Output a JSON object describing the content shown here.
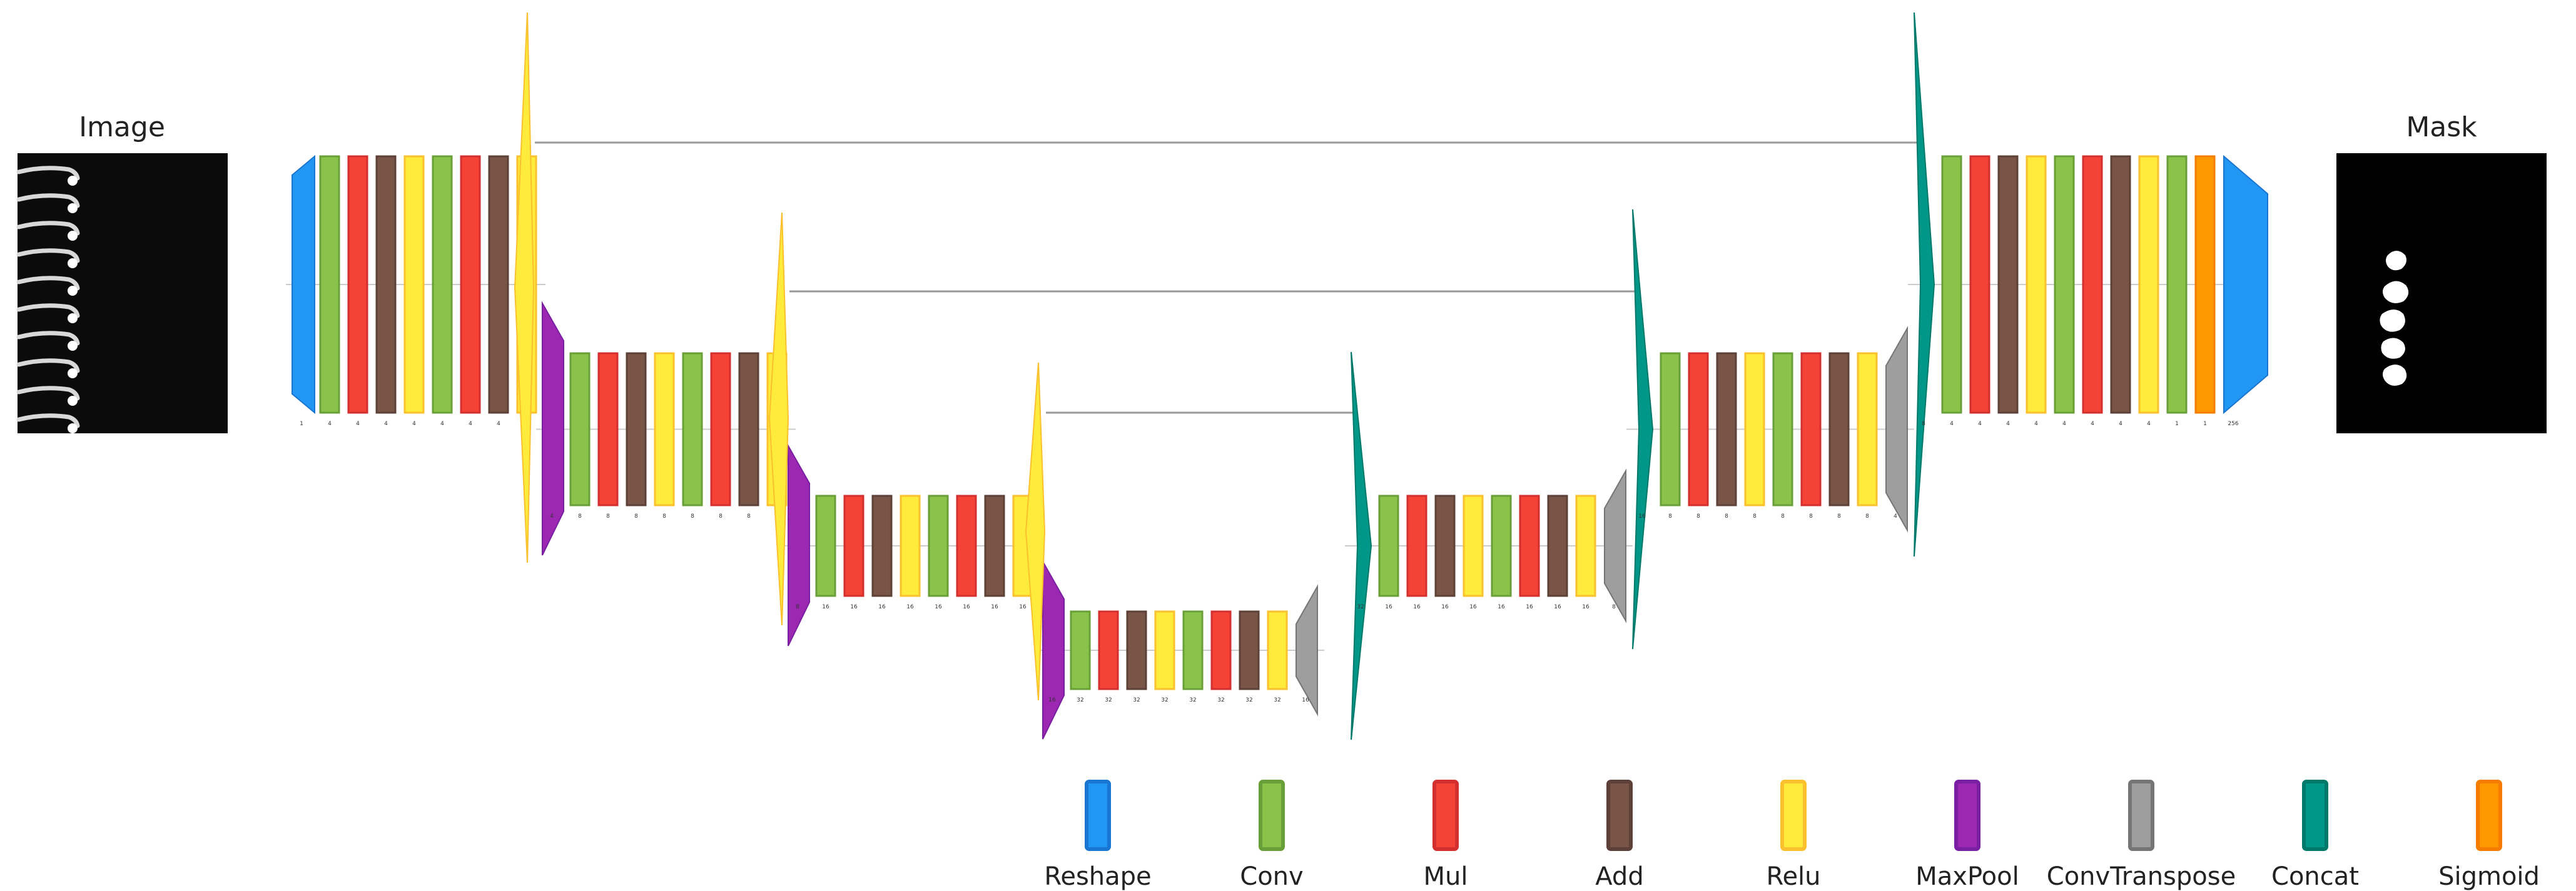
{
  "input_label": "Image",
  "output_label": "Mask",
  "colors": {
    "Reshape": {
      "fill": "#2196f3",
      "stroke": "#1976d2"
    },
    "Conv": {
      "fill": "#8bc34a",
      "stroke": "#689f38"
    },
    "Mul": {
      "fill": "#f44336",
      "stroke": "#d32f2f"
    },
    "Add": {
      "fill": "#795548",
      "stroke": "#5d4037"
    },
    "Relu": {
      "fill": "#ffeb3b",
      "stroke": "#fbc02d"
    },
    "MaxPool": {
      "fill": "#9c27b0",
      "stroke": "#7b1fa2"
    },
    "ConvTranspose": {
      "fill": "#9e9e9e",
      "stroke": "#757575"
    },
    "Concat": {
      "fill": "#009688",
      "stroke": "#00796b"
    },
    "Sigmoid": {
      "fill": "#ff9800",
      "stroke": "#f57c00"
    }
  },
  "legend": [
    {
      "type": "Reshape",
      "label": "Reshape"
    },
    {
      "type": "Conv",
      "label": "Conv"
    },
    {
      "type": "Mul",
      "label": "Mul"
    },
    {
      "type": "Add",
      "label": "Add"
    },
    {
      "type": "Relu",
      "label": "Relu"
    },
    {
      "type": "MaxPool",
      "label": "MaxPool"
    },
    {
      "type": "ConvTranspose",
      "label": "ConvTranspose"
    },
    {
      "type": "Concat",
      "label": "Concat"
    },
    {
      "type": "Sigmoid",
      "label": "Sigmoid"
    }
  ],
  "stages": [
    {
      "layers": [
        {
          "type": "Reshape",
          "channels": "1"
        },
        {
          "type": "Conv",
          "channels": "4"
        },
        {
          "type": "Mul",
          "channels": "4"
        },
        {
          "type": "Add",
          "channels": "4"
        },
        {
          "type": "Relu",
          "channels": "4"
        },
        {
          "type": "Conv",
          "channels": "4"
        },
        {
          "type": "Mul",
          "channels": "4"
        },
        {
          "type": "Add",
          "channels": "4"
        },
        {
          "type": "Relu",
          "channels": "4"
        }
      ]
    },
    {
      "layers": [
        {
          "type": "MaxPool",
          "channels": "4"
        },
        {
          "type": "Conv",
          "channels": "8"
        },
        {
          "type": "Mul",
          "channels": "8"
        },
        {
          "type": "Add",
          "channels": "8"
        },
        {
          "type": "Relu",
          "channels": "8"
        },
        {
          "type": "Conv",
          "channels": "8"
        },
        {
          "type": "Mul",
          "channels": "8"
        },
        {
          "type": "Add",
          "channels": "8"
        },
        {
          "type": "Relu",
          "channels": "8"
        }
      ]
    },
    {
      "layers": [
        {
          "type": "MaxPool",
          "channels": "8"
        },
        {
          "type": "Conv",
          "channels": "16"
        },
        {
          "type": "Mul",
          "channels": "16"
        },
        {
          "type": "Add",
          "channels": "16"
        },
        {
          "type": "Relu",
          "channels": "16"
        },
        {
          "type": "Conv",
          "channels": "16"
        },
        {
          "type": "Mul",
          "channels": "16"
        },
        {
          "type": "Add",
          "channels": "16"
        },
        {
          "type": "Relu",
          "channels": "16"
        }
      ]
    },
    {
      "layers": [
        {
          "type": "MaxPool",
          "channels": "16"
        },
        {
          "type": "Conv",
          "channels": "32"
        },
        {
          "type": "Mul",
          "channels": "32"
        },
        {
          "type": "Add",
          "channels": "32"
        },
        {
          "type": "Relu",
          "channels": "32"
        },
        {
          "type": "Conv",
          "channels": "32"
        },
        {
          "type": "Mul",
          "channels": "32"
        },
        {
          "type": "Add",
          "channels": "32"
        },
        {
          "type": "Relu",
          "channels": "32"
        },
        {
          "type": "ConvTranspose",
          "channels": "16"
        }
      ]
    },
    {
      "layers": [
        {
          "type": "Concat",
          "channels": "32"
        },
        {
          "type": "Conv",
          "channels": "16"
        },
        {
          "type": "Mul",
          "channels": "16"
        },
        {
          "type": "Add",
          "channels": "16"
        },
        {
          "type": "Relu",
          "channels": "16"
        },
        {
          "type": "Conv",
          "channels": "16"
        },
        {
          "type": "Mul",
          "channels": "16"
        },
        {
          "type": "Add",
          "channels": "16"
        },
        {
          "type": "Relu",
          "channels": "16"
        },
        {
          "type": "ConvTranspose",
          "channels": "8"
        }
      ]
    },
    {
      "layers": [
        {
          "type": "Concat",
          "channels": "16"
        },
        {
          "type": "Conv",
          "channels": "8"
        },
        {
          "type": "Mul",
          "channels": "8"
        },
        {
          "type": "Add",
          "channels": "8"
        },
        {
          "type": "Relu",
          "channels": "8"
        },
        {
          "type": "Conv",
          "channels": "8"
        },
        {
          "type": "Mul",
          "channels": "8"
        },
        {
          "type": "Add",
          "channels": "8"
        },
        {
          "type": "Relu",
          "channels": "8"
        },
        {
          "type": "ConvTranspose",
          "channels": "4"
        }
      ]
    },
    {
      "layers": [
        {
          "type": "Concat",
          "channels": "8"
        },
        {
          "type": "Conv",
          "channels": "4"
        },
        {
          "type": "Mul",
          "channels": "4"
        },
        {
          "type": "Add",
          "channels": "4"
        },
        {
          "type": "Relu",
          "channels": "4"
        },
        {
          "type": "Conv",
          "channels": "4"
        },
        {
          "type": "Mul",
          "channels": "4"
        },
        {
          "type": "Add",
          "channels": "4"
        },
        {
          "type": "Relu",
          "channels": "4"
        },
        {
          "type": "Conv",
          "channels": "1"
        },
        {
          "type": "Sigmoid",
          "channels": "1"
        },
        {
          "type": "Reshape",
          "channels": "256"
        }
      ]
    }
  ]
}
